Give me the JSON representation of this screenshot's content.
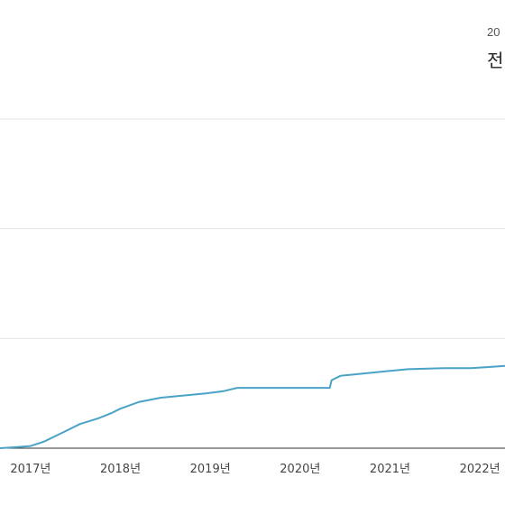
{
  "tooltip": {
    "date_fragment": "20",
    "label_fragment": "전"
  },
  "colors": {
    "line": "#4aa3c6",
    "grid": "#e6e6e6",
    "axis": "#333333",
    "background": "#ffffff"
  },
  "chart_data": {
    "type": "line",
    "title": "",
    "xlabel": "",
    "ylabel": "",
    "x_tick_labels": [
      "2017년",
      "2018년",
      "2019년",
      "2020년",
      "2021년",
      "2022년"
    ],
    "x_tick_values": [
      2017,
      2018,
      2019,
      2020,
      2021,
      2022
    ],
    "xlim": [
      2016.66,
      2022.28
    ],
    "ylim": [
      0,
      300
    ],
    "grid": true,
    "gridlines_y": [
      0,
      100,
      200,
      300
    ],
    "series": [
      {
        "values": [
          [
            2016.66,
            0
          ],
          [
            2016.85,
            1
          ],
          [
            2017.0,
            2
          ],
          [
            2017.15,
            6
          ],
          [
            2017.35,
            14
          ],
          [
            2017.55,
            22
          ],
          [
            2017.75,
            27
          ],
          [
            2017.9,
            32
          ],
          [
            2018.0,
            36
          ],
          [
            2018.2,
            42
          ],
          [
            2018.45,
            46
          ],
          [
            2018.7,
            48
          ],
          [
            2018.95,
            50
          ],
          [
            2019.15,
            52
          ],
          [
            2019.3,
            55
          ],
          [
            2019.6,
            55
          ],
          [
            2019.9,
            55
          ],
          [
            2020.1,
            55
          ],
          [
            2020.33,
            55
          ],
          [
            2020.35,
            62
          ],
          [
            2020.45,
            66
          ],
          [
            2020.7,
            68
          ],
          [
            2020.95,
            70
          ],
          [
            2021.2,
            72
          ],
          [
            2021.6,
            73
          ],
          [
            2021.9,
            73
          ],
          [
            2022.1,
            74
          ],
          [
            2022.28,
            75
          ]
        ]
      }
    ]
  }
}
